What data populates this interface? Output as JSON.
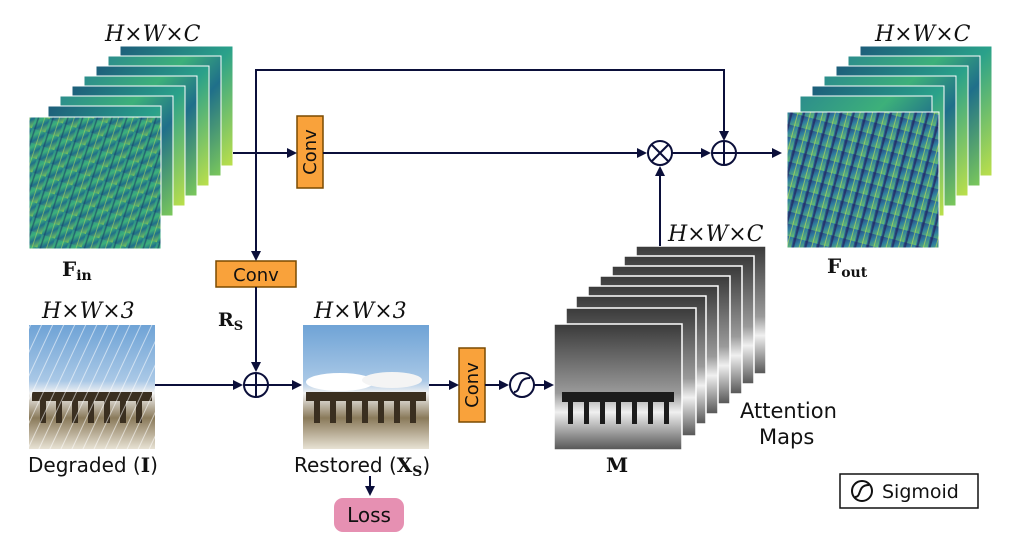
{
  "colors": {
    "conv_fill": "#f9a23b",
    "conv_stroke": "#7a4a00",
    "loss_fill": "#e690b2",
    "arrow": "#0b0f3a",
    "feature_dark": "#1b4f6b",
    "feature_mid": "#2f9a8c",
    "feature_light": "#8fd14f"
  },
  "input_features": {
    "dims": "H×W×C",
    "label": "F",
    "subscript": "in"
  },
  "output_features": {
    "dims": "H×W×C",
    "label": "F",
    "subscript": "out"
  },
  "attention": {
    "dims": "H×W×C",
    "label": "M",
    "caption_line1": "Attention",
    "caption_line2": "Maps"
  },
  "degraded": {
    "dims": "H×W×3",
    "label": "Degraded (",
    "symbol": "I",
    "close": ")"
  },
  "restored": {
    "dims": "H×W×3",
    "label": "Restored (",
    "symbol": "X",
    "subscript": "S",
    "close": ")"
  },
  "residual": {
    "label": "R",
    "subscript": "S"
  },
  "conv_blocks": {
    "top": "Conv",
    "middle": "Conv",
    "restore": "Conv"
  },
  "loss": {
    "label": "Loss"
  },
  "legend": {
    "sigmoid_label": "Sigmoid"
  },
  "operators": {
    "multiply": "⊗",
    "add": "⊕"
  }
}
